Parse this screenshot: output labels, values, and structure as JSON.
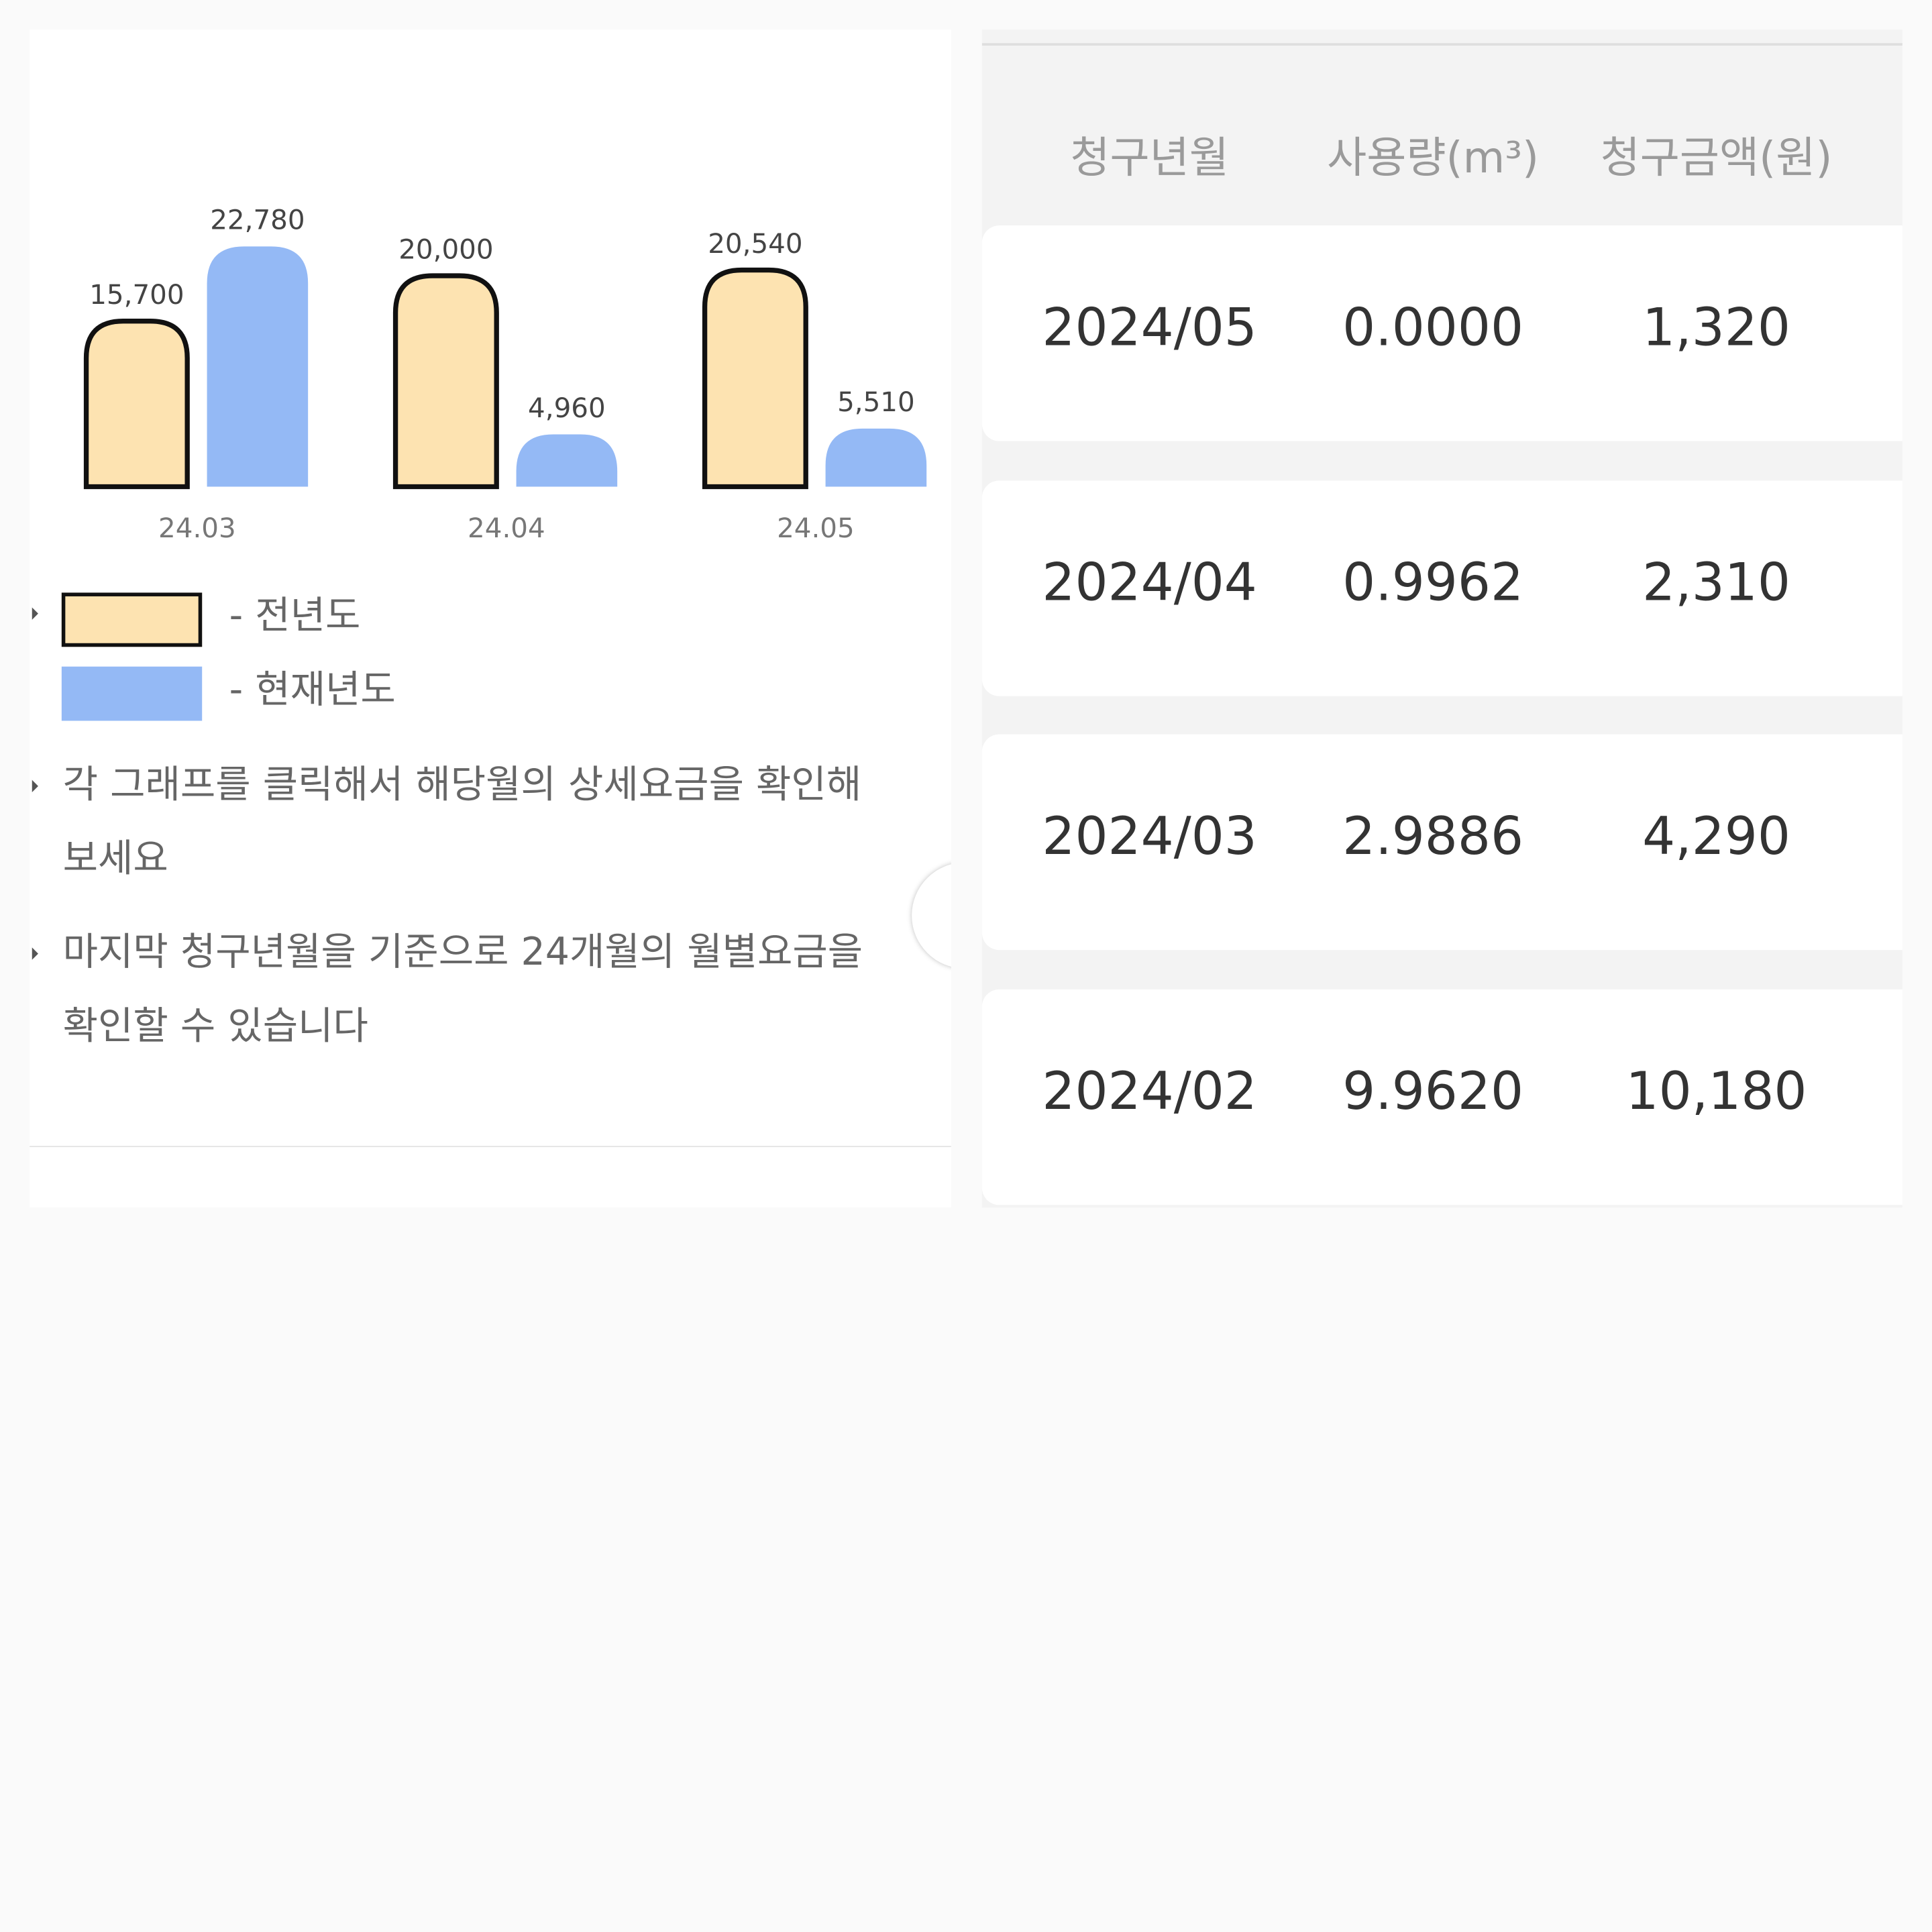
{
  "chart_data": {
    "type": "bar",
    "categories": [
      "24.03",
      "24.04",
      "24.05"
    ],
    "series": [
      {
        "name": "전년도",
        "values": [
          15700,
          20000,
          20540
        ],
        "color": "#fde3b1",
        "stroke": "#111111"
      },
      {
        "name": "현재년도",
        "values": [
          22780,
          4960,
          5510
        ],
        "color": "#94b9f5"
      }
    ],
    "value_labels": [
      [
        "15,700",
        "20,000",
        "20,540"
      ],
      [
        "22,780",
        "4,960",
        "5,510"
      ]
    ],
    "grid": false,
    "legend": "bottom"
  },
  "legend": {
    "prev_label": "- 전년도",
    "curr_label": "- 현재년도"
  },
  "notes": [
    {
      "line1": "각 그래프를 클릭해서 해당월의 상세요금을 확인해",
      "line2": "보세요"
    },
    {
      "line1": "마지막 청구년월을 기준으로 24개월의 월별요금을",
      "line2": "확인할 수 있습니다"
    }
  ],
  "table": {
    "headers": [
      "청구년월",
      "사용량(m³)",
      "청구금액(원)"
    ],
    "rows": [
      [
        "2024/05",
        "0.0000",
        "1,320"
      ],
      [
        "2024/04",
        "0.9962",
        "2,310"
      ],
      [
        "2024/03",
        "2.9886",
        "4,290"
      ],
      [
        "2024/02",
        "9.9620",
        "10,180"
      ]
    ]
  }
}
